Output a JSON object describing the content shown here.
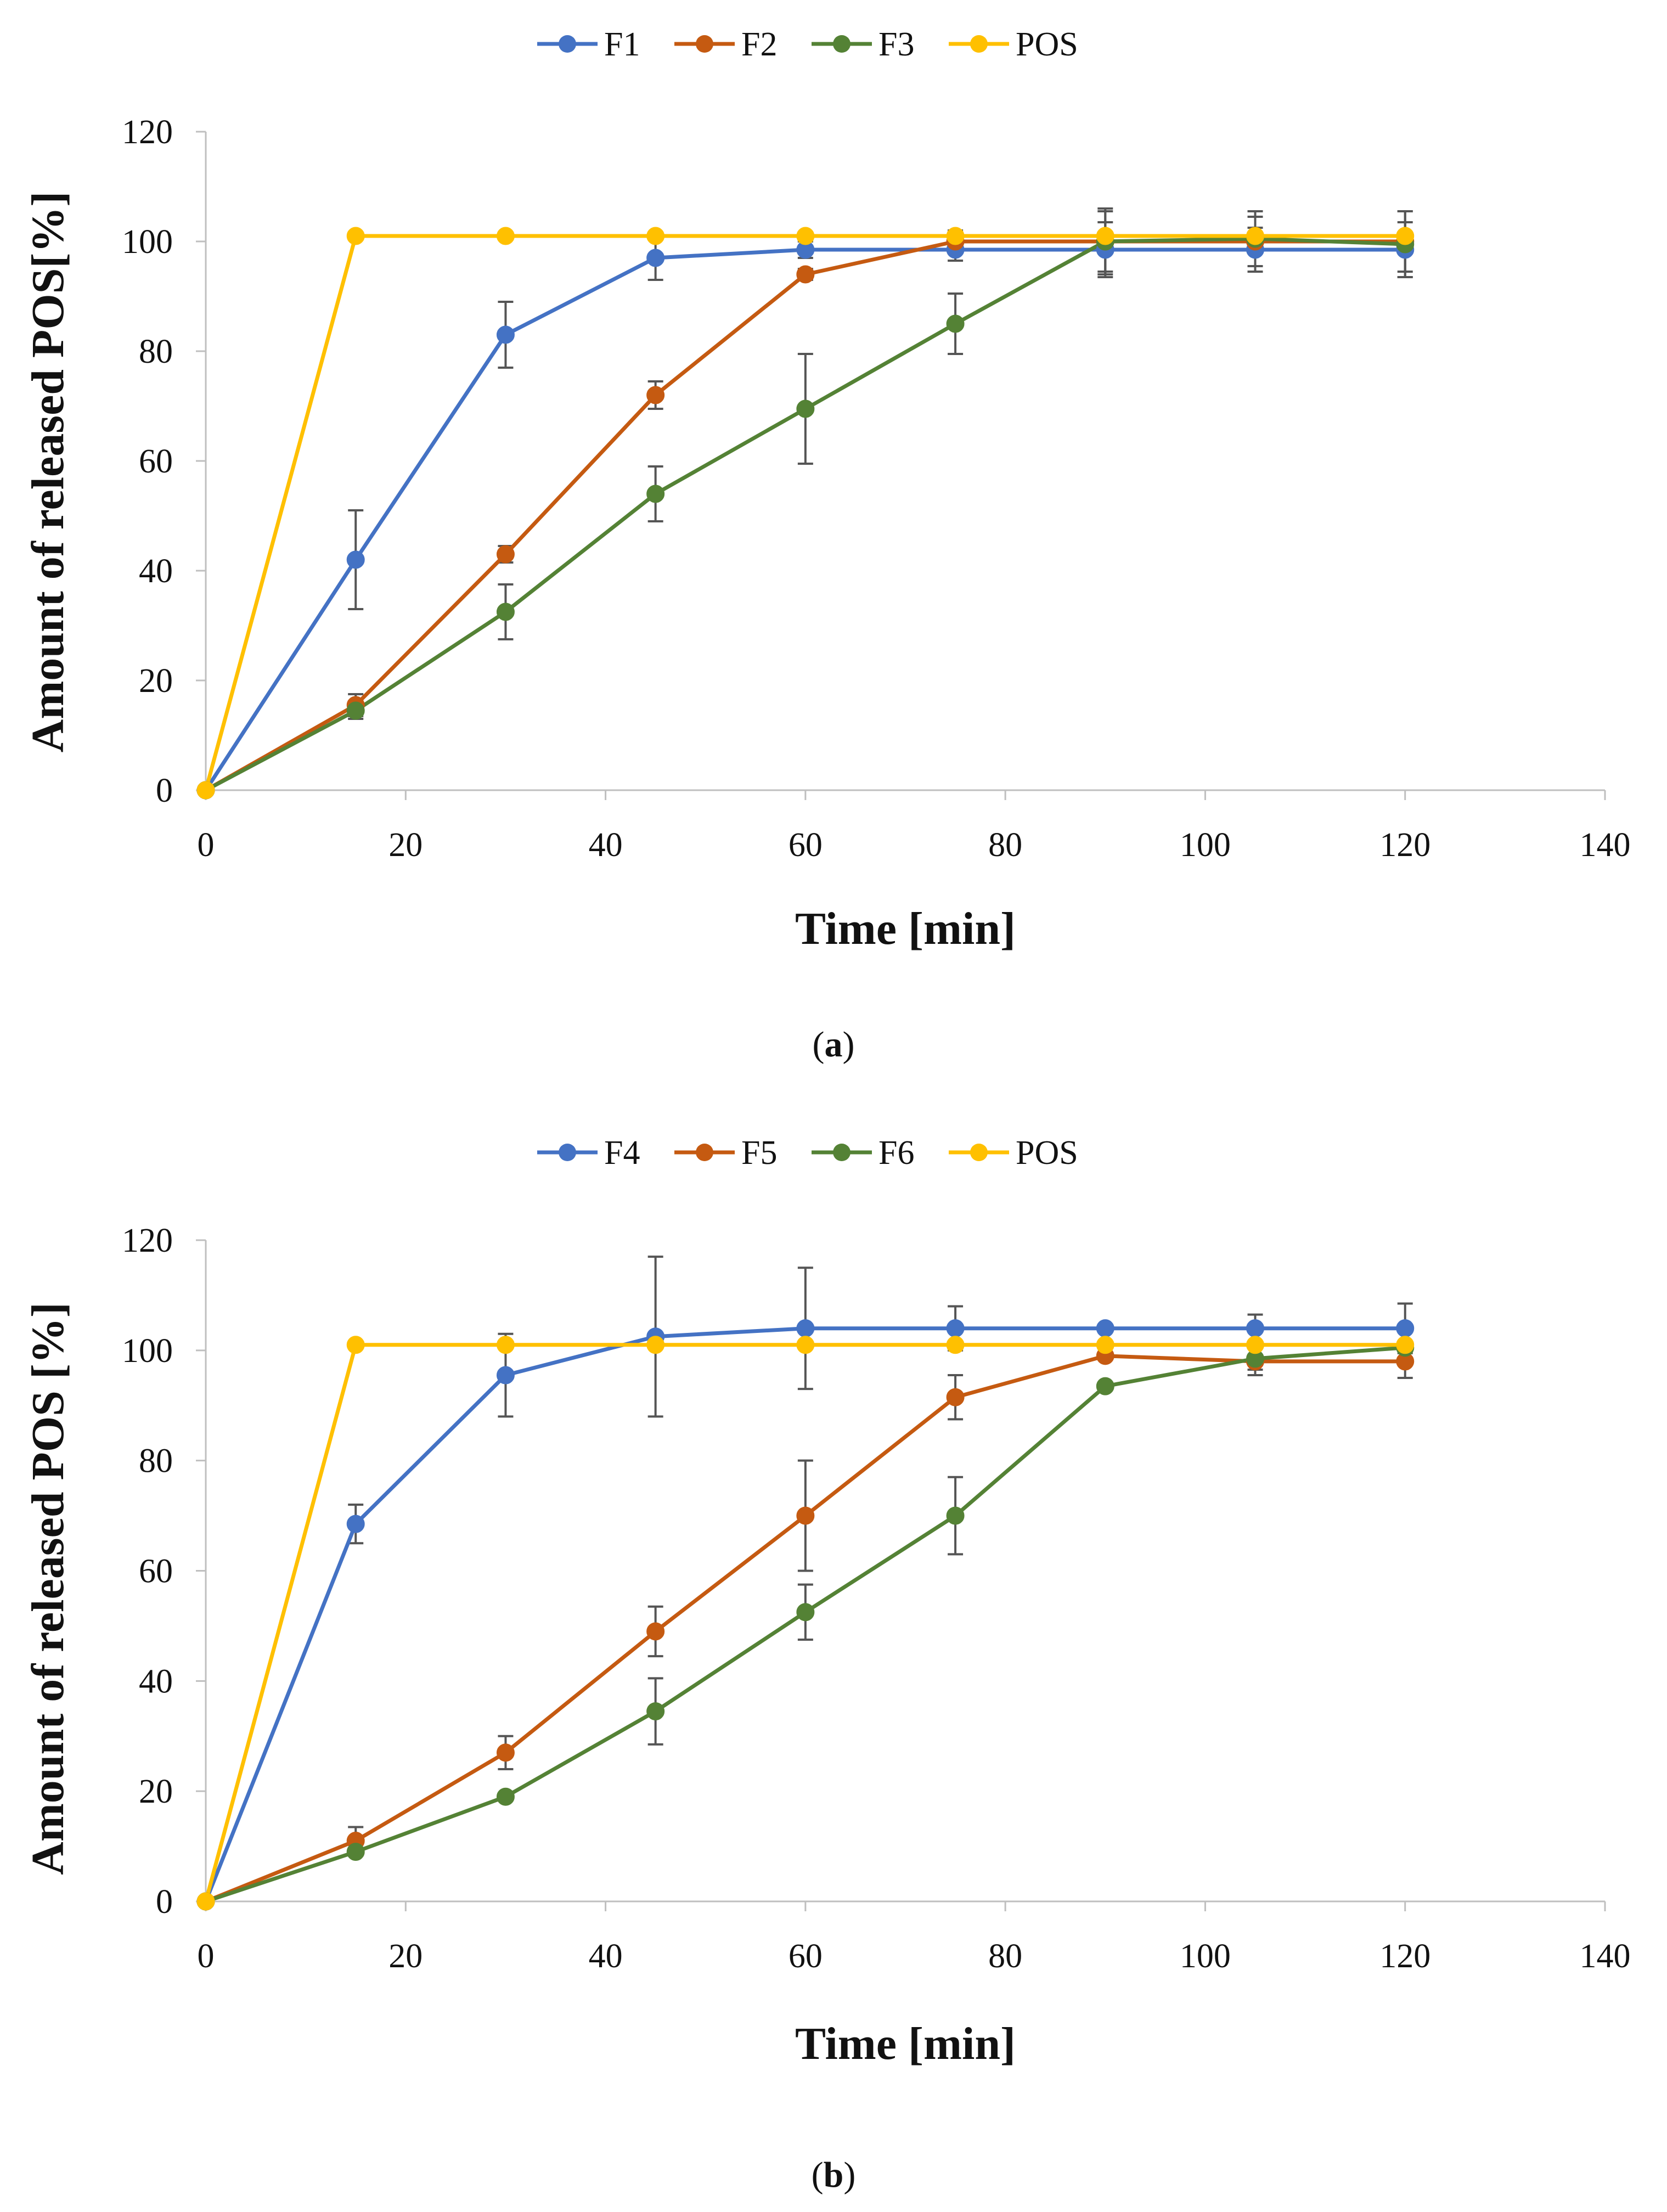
{
  "chart_data": [
    {
      "type": "line",
      "panel": "a",
      "caption": "(a)",
      "caption_letter": "a",
      "xlabel": "Time [min]",
      "ylabel": "Amount of released POS[%]",
      "xlim": [
        0,
        140
      ],
      "ylim": [
        0,
        120
      ],
      "xticks": [
        0,
        20,
        40,
        60,
        80,
        100,
        120,
        140
      ],
      "yticks": [
        0,
        20,
        40,
        60,
        80,
        100,
        120
      ],
      "x": [
        0,
        15,
        30,
        45,
        60,
        75,
        90,
        105,
        120
      ],
      "legend_position": "top-center",
      "series": [
        {
          "name": "F1",
          "color": "#4472C4",
          "values": [
            0,
            42,
            83,
            97,
            98.5,
            98.5,
            98.5,
            98.5,
            98.5
          ],
          "errors": [
            0,
            9,
            6,
            4,
            1.5,
            2,
            5,
            4,
            5
          ]
        },
        {
          "name": "F2",
          "color": "#C55A11",
          "values": [
            0,
            15.5,
            43,
            72,
            94,
            100,
            100,
            100,
            100
          ],
          "errors": [
            0,
            2,
            1.5,
            2.5,
            1,
            2,
            5.5,
            4.5,
            5.5
          ]
        },
        {
          "name": "F3",
          "color": "#548235",
          "values": [
            0,
            14.5,
            32.5,
            54,
            69.5,
            85,
            100,
            100.5,
            99.5
          ],
          "errors": [
            0,
            1.5,
            5,
            5,
            10,
            5.5,
            6,
            5,
            6
          ]
        },
        {
          "name": "POS",
          "color": "#FFC000",
          "values": [
            0,
            101,
            101,
            101,
            101,
            101,
            101,
            101,
            101
          ],
          "errors": [
            0,
            0,
            0,
            0,
            0,
            0,
            0,
            0,
            0
          ]
        }
      ]
    },
    {
      "type": "line",
      "panel": "b",
      "caption": "(b)",
      "caption_letter": "b",
      "xlabel": "Time [min]",
      "ylabel": "Amount of released POS [%]",
      "xlim": [
        0,
        140
      ],
      "ylim": [
        0,
        120
      ],
      "xticks": [
        0,
        20,
        40,
        60,
        80,
        100,
        120,
        140
      ],
      "yticks": [
        0,
        20,
        40,
        60,
        80,
        100,
        120
      ],
      "x": [
        0,
        15,
        30,
        45,
        60,
        75,
        90,
        105,
        120
      ],
      "legend_position": "top-center",
      "series": [
        {
          "name": "F4",
          "color": "#4472C4",
          "values": [
            0,
            68.5,
            95.5,
            102.5,
            104,
            104,
            104,
            104,
            104
          ],
          "errors": [
            0,
            3.5,
            7.5,
            14.5,
            11,
            4,
            0,
            2.5,
            4.5
          ]
        },
        {
          "name": "F5",
          "color": "#C55A11",
          "values": [
            0,
            11,
            27,
            49,
            70,
            91.5,
            99,
            98,
            98
          ],
          "errors": [
            0,
            2.5,
            3,
            4.5,
            10,
            4,
            0,
            2.5,
            3
          ]
        },
        {
          "name": "F6",
          "color": "#548235",
          "values": [
            0,
            9,
            19,
            34.5,
            52.5,
            70,
            93.5,
            98.5,
            100.5
          ],
          "errors": [
            0,
            0,
            0,
            6,
            5,
            7,
            0,
            2,
            0
          ]
        },
        {
          "name": "POS",
          "color": "#FFC000",
          "values": [
            0,
            101,
            101,
            101,
            101,
            101,
            101,
            101,
            101
          ],
          "errors": [
            0,
            0,
            0,
            0,
            0,
            0,
            0,
            0,
            0
          ]
        }
      ]
    }
  ]
}
